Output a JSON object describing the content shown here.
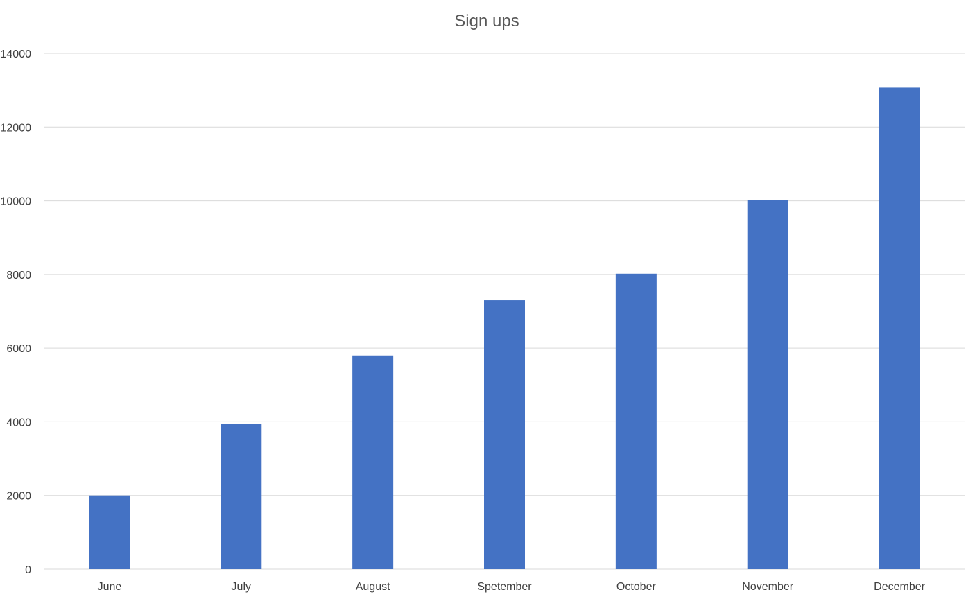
{
  "chart_data": {
    "type": "bar",
    "title": "Sign ups",
    "xlabel": "",
    "ylabel": "",
    "categories": [
      "June",
      "July",
      "August",
      "Spetember",
      "October",
      "November",
      "December"
    ],
    "series": [
      {
        "values": [
          2000,
          3950,
          5800,
          7300,
          8020,
          10020,
          13070
        ]
      }
    ],
    "ylim": [
      0,
      14000
    ],
    "yticks": [
      "0",
      "2000",
      "4000",
      "6000",
      "8000",
      "10000",
      "12000",
      "14000"
    ],
    "grid": true,
    "legend": "none",
    "bar_color": "#4472C4"
  }
}
